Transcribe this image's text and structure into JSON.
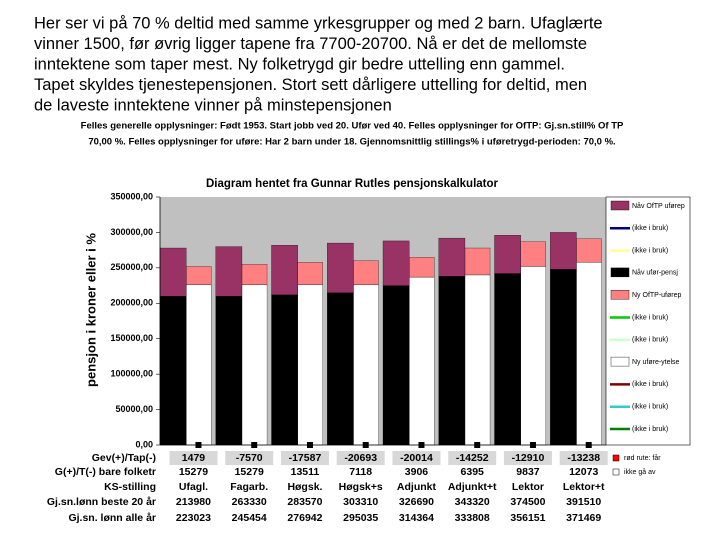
{
  "slide_text": [
    "Her ser vi på 70 % deltid med samme yrkesgrupper og med 2 barn. Ufaglærte",
    "vinner 1500, før øvrig ligger tapene fra 7700-20700. Nå er det de mellomste",
    "inntektene som taper mest. Ny folketrygd gir bedre uttelling enn gammel.",
    "Tapet skyldes tjenestepensjonen. Stort sett dårligere uttelling for deltid, men",
    "de laveste inntektene vinner på minstepensjonen"
  ],
  "chart_data": {
    "type": "bar",
    "header": [
      "Felles generelle opplysninger: Født 1953. Start jobb ved 20. Ufør ved 40. Felles opplysninger for OfTP: Gj.sn.still% Of TP",
      "70,00 %. Felles opplysninger for uføre: Har 2 barn under 18. Gjennomsnittlig stillings% i uføretrygd-perioden: 70,0 %."
    ],
    "title": "Diagram hentet fra Gunnar Rutles pensjonskalkulator",
    "y_label": "pensjon i kroner eller i %",
    "categories": [
      "Ufagl.",
      "Fagarb.",
      "Høgsk.",
      "Høgsk+s",
      "Adjunkt",
      "Adjunkt+t",
      "Lektor",
      "Lektor+t"
    ],
    "ylim": [
      0,
      350000
    ],
    "yticks": [
      {
        "value": 0,
        "label": "0,00"
      },
      {
        "value": 50000,
        "label": "50000,00"
      },
      {
        "value": 100000,
        "label": "100000,00"
      },
      {
        "value": 150000,
        "label": "150000,00"
      },
      {
        "value": 200000,
        "label": "200000,00"
      },
      {
        "value": 250000,
        "label": "250000,00"
      },
      {
        "value": 300000,
        "label": "300000,00"
      },
      {
        "value": 350000,
        "label": "350000,00"
      }
    ],
    "grid": false,
    "series": [
      {
        "name": "Nåv OfTP uførep",
        "color": "#993366",
        "stack": 0,
        "values": [
          68000,
          70000,
          70000,
          70000,
          63000,
          54000,
          54000,
          52000
        ]
      },
      {
        "name": "(ikke i bruk)",
        "color": "#000080",
        "values": [
          null,
          null,
          null,
          null,
          null,
          null,
          null,
          null
        ]
      },
      {
        "name": "(ikke i bruk)",
        "color": "#ffff99",
        "values": [
          null,
          null,
          null,
          null,
          null,
          null,
          null,
          null
        ]
      },
      {
        "name": "Nåv ufør-pensj",
        "color": "#000000",
        "stack": 0,
        "values": [
          210000,
          210000,
          212000,
          215000,
          225000,
          238000,
          242000,
          248000
        ]
      },
      {
        "name": "Ny OfTP-uførep",
        "color": "#ff8080",
        "stack": 1,
        "values": [
          26000,
          29000,
          32000,
          34000,
          28000,
          38000,
          35000,
          33000
        ]
      },
      {
        "name": "(ikke i bruk)",
        "color": "#00cc00",
        "values": [
          null,
          null,
          null,
          null,
          null,
          null,
          null,
          null
        ]
      },
      {
        "name": "(ikke i bruk)",
        "color": "#ccffcc",
        "values": [
          null,
          null,
          null,
          null,
          null,
          null,
          null,
          null
        ]
      },
      {
        "name": "Ny uføre-ytelse",
        "color": "#ffffff",
        "stack": 1,
        "values": [
          226000,
          226000,
          226000,
          226000,
          237000,
          240000,
          252000,
          258000
        ]
      },
      {
        "name": "(ikke i bruk)",
        "color": "#800000",
        "values": [
          null,
          null,
          null,
          null,
          null,
          null,
          null,
          null
        ]
      },
      {
        "name": "(ikke i bruk)",
        "color": "#33cccc",
        "values": [
          null,
          null,
          null,
          null,
          null,
          null,
          null,
          null
        ]
      },
      {
        "name": "(ikke i bruk)",
        "color": "#008000",
        "values": [
          null,
          null,
          null,
          null,
          null,
          null,
          null,
          null
        ]
      }
    ]
  },
  "table": {
    "rows": [
      {
        "label": "Gev(+)/Tap(-)",
        "cells": [
          "1479",
          "-7570",
          "-17587",
          "-20693",
          "-20014",
          "-14252",
          "-12910",
          "-13238"
        ]
      },
      {
        "label": "G(+)/T(-) bare folketr",
        "cells": [
          "15279",
          "15279",
          "13511",
          "7118",
          "3906",
          "6395",
          "9837",
          "12073"
        ]
      },
      {
        "label": "KS-stilling",
        "cells": [
          "Ufagl.",
          "Fagarb.",
          "Høgsk.",
          "Høgsk+s",
          "Adjunkt",
          "Adjunkt+t",
          "Lektor",
          "Lektor+t"
        ]
      },
      {
        "label": "Gj.sn.lønn beste 20 år",
        "cells": [
          "213980",
          "263330",
          "283570",
          "303310",
          "326690",
          "343320",
          "374500",
          "391510"
        ]
      },
      {
        "label": "Gj.sn. lønn alle år",
        "cells": [
          "223023",
          "245454",
          "276942",
          "295035",
          "314364",
          "333808",
          "356151",
          "371469"
        ]
      }
    ],
    "notes": [
      "rød rute: får",
      "ikke gå av"
    ]
  }
}
